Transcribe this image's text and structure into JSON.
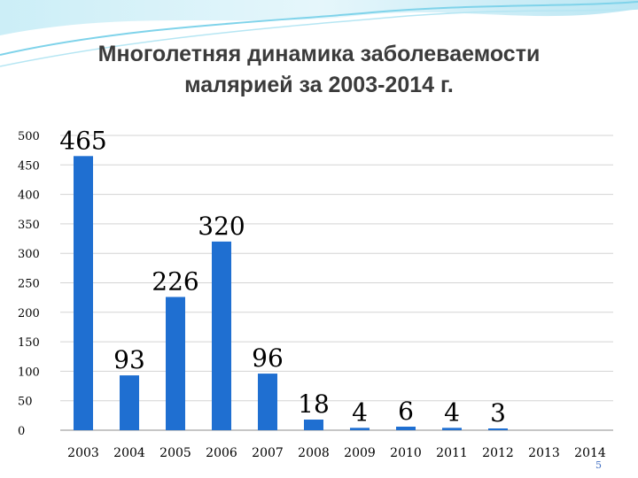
{
  "slide": {
    "title_line1": "Многолетняя динамика заболеваемости",
    "title_line2": "малярией за 2003-2014 г.",
    "slide_number": "5"
  },
  "colors": {
    "bar": "#1f6fd1",
    "accent_wave": "#7fd3ea",
    "title": "#3b3b3b"
  },
  "chart_data": {
    "type": "bar",
    "title": "",
    "xlabel": "",
    "ylabel": "",
    "categories": [
      "2003",
      "2004",
      "2005",
      "2006",
      "2007",
      "2008",
      "2009",
      "2010",
      "2011",
      "2012",
      "2013",
      "2014"
    ],
    "values": [
      465,
      93,
      226,
      320,
      96,
      18,
      4,
      6,
      4,
      3,
      null,
      null
    ],
    "data_labels": [
      "465",
      "93",
      "226",
      "320",
      "96",
      "18",
      "4",
      "6",
      "4",
      "3",
      "",
      ""
    ],
    "ylim": [
      0,
      500
    ],
    "yticks": [
      0,
      50,
      100,
      150,
      200,
      250,
      300,
      350,
      400,
      450,
      500
    ],
    "ytick_labels": [
      "0",
      "50",
      "100",
      "150",
      "200",
      "250",
      "300",
      "350",
      "400",
      "450",
      "500"
    ],
    "grid": true,
    "legend": "none"
  }
}
